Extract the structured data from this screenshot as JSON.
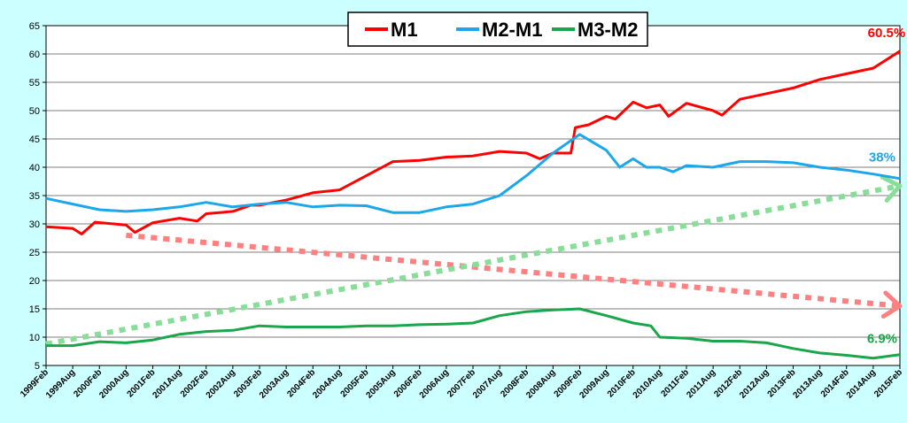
{
  "chart_data": {
    "type": "line",
    "ylim": [
      5,
      65
    ],
    "yticks": [
      5,
      10,
      15,
      20,
      25,
      30,
      35,
      40,
      45,
      50,
      55,
      60,
      65
    ],
    "x_start": "1999-02",
    "x_end": "2015-02",
    "xticks": [
      "1999Feb",
      "1999Aug",
      "2000Feb",
      "2000Aug",
      "2001Feb",
      "2001Aug",
      "2002Feb",
      "2002Aug",
      "2003Feb",
      "2003Aug",
      "2004Feb",
      "2004Aug",
      "2005Feb",
      "2005Aug",
      "2006Feb",
      "2006Aug",
      "2007Feb",
      "2007Aug",
      "2008Feb",
      "2008Aug",
      "2009Feb",
      "2009Aug",
      "2010Feb",
      "2010Aug",
      "2011Feb",
      "2011Aug",
      "2012Feb",
      "2012Aug",
      "2013Feb",
      "2013Aug",
      "2014Feb",
      "2014Aug",
      "2015Feb"
    ],
    "grid": true,
    "legend": {
      "placement": "top-center",
      "entries": [
        "M1",
        "M2-M1",
        "M3-M2"
      ]
    },
    "series": [
      {
        "name": "M1",
        "color": "#ff0000",
        "points": [
          [
            "1999-02",
            29.5
          ],
          [
            "1999-08",
            29.2
          ],
          [
            "1999-10",
            28.2
          ],
          [
            "2000-01",
            30.3
          ],
          [
            "2000-08",
            29.8
          ],
          [
            "2000-10",
            28.5
          ],
          [
            "2001-02",
            30.2
          ],
          [
            "2001-08",
            31
          ],
          [
            "2001-12",
            30.5
          ],
          [
            "2002-02",
            31.8
          ],
          [
            "2002-08",
            32.2
          ],
          [
            "2002-12",
            33.3
          ],
          [
            "2003-02",
            33.3
          ],
          [
            "2003-08",
            34.2
          ],
          [
            "2004-02",
            35.5
          ],
          [
            "2004-08",
            36
          ],
          [
            "2005-02",
            38.5
          ],
          [
            "2005-08",
            41
          ],
          [
            "2006-02",
            41.2
          ],
          [
            "2006-08",
            41.8
          ],
          [
            "2007-02",
            42
          ],
          [
            "2007-08",
            42.8
          ],
          [
            "2008-02",
            42.5
          ],
          [
            "2008-05",
            41.5
          ],
          [
            "2008-08",
            42.5
          ],
          [
            "2008-12",
            42.5
          ],
          [
            "2009-01",
            47
          ],
          [
            "2009-04",
            47.5
          ],
          [
            "2009-08",
            49
          ],
          [
            "2009-10",
            48.5
          ],
          [
            "2010-02",
            51.5
          ],
          [
            "2010-05",
            50.5
          ],
          [
            "2010-08",
            51
          ],
          [
            "2010-10",
            49
          ],
          [
            "2011-02",
            51.3
          ],
          [
            "2011-08",
            50
          ],
          [
            "2011-10",
            49.2
          ],
          [
            "2012-02",
            52
          ],
          [
            "2012-08",
            53
          ],
          [
            "2013-02",
            54
          ],
          [
            "2013-08",
            55.5
          ],
          [
            "2014-02",
            56.5
          ],
          [
            "2014-08",
            57.5
          ],
          [
            "2014-12",
            59.5
          ],
          [
            "2015-02",
            60.5
          ]
        ]
      },
      {
        "name": "M2-M1",
        "color": "#1ca8e8",
        "points": [
          [
            "1999-02",
            34.5
          ],
          [
            "1999-08",
            33.5
          ],
          [
            "2000-02",
            32.5
          ],
          [
            "2000-08",
            32.2
          ],
          [
            "2001-02",
            32.5
          ],
          [
            "2001-08",
            33
          ],
          [
            "2002-02",
            33.8
          ],
          [
            "2002-08",
            33
          ],
          [
            "2003-02",
            33.5
          ],
          [
            "2003-08",
            33.8
          ],
          [
            "2004-02",
            33
          ],
          [
            "2004-08",
            33.3
          ],
          [
            "2005-02",
            33.2
          ],
          [
            "2005-08",
            32
          ],
          [
            "2006-02",
            32
          ],
          [
            "2006-08",
            33
          ],
          [
            "2007-02",
            33.5
          ],
          [
            "2007-08",
            35
          ],
          [
            "2008-02",
            38.5
          ],
          [
            "2008-08",
            42.5
          ],
          [
            "2009-02",
            45.8
          ],
          [
            "2009-08",
            43
          ],
          [
            "2009-11",
            40
          ],
          [
            "2010-02",
            41.5
          ],
          [
            "2010-05",
            40
          ],
          [
            "2010-08",
            40
          ],
          [
            "2010-11",
            39.2
          ],
          [
            "2011-02",
            40.3
          ],
          [
            "2011-08",
            40
          ],
          [
            "2012-02",
            41
          ],
          [
            "2012-08",
            41
          ],
          [
            "2013-02",
            40.8
          ],
          [
            "2013-08",
            40
          ],
          [
            "2014-02",
            39.5
          ],
          [
            "2014-08",
            38.8
          ],
          [
            "2015-02",
            38
          ]
        ]
      },
      {
        "name": "M3-M2",
        "color": "#1aa64a",
        "points": [
          [
            "1999-02",
            8.5
          ],
          [
            "1999-08",
            8.5
          ],
          [
            "2000-02",
            9.2
          ],
          [
            "2000-08",
            9
          ],
          [
            "2001-02",
            9.5
          ],
          [
            "2001-08",
            10.5
          ],
          [
            "2002-02",
            11
          ],
          [
            "2002-08",
            11.2
          ],
          [
            "2003-02",
            12
          ],
          [
            "2003-08",
            11.8
          ],
          [
            "2004-02",
            11.8
          ],
          [
            "2004-08",
            11.8
          ],
          [
            "2005-02",
            12
          ],
          [
            "2005-08",
            12
          ],
          [
            "2006-02",
            12.2
          ],
          [
            "2006-08",
            12.3
          ],
          [
            "2007-02",
            12.5
          ],
          [
            "2007-08",
            13.8
          ],
          [
            "2008-02",
            14.5
          ],
          [
            "2008-08",
            14.8
          ],
          [
            "2009-02",
            15
          ],
          [
            "2009-08",
            13.8
          ],
          [
            "2010-02",
            12.5
          ],
          [
            "2010-06",
            12
          ],
          [
            "2010-08",
            10
          ],
          [
            "2011-02",
            9.8
          ],
          [
            "2011-08",
            9.3
          ],
          [
            "2012-02",
            9.3
          ],
          [
            "2012-08",
            9
          ],
          [
            "2013-02",
            8
          ],
          [
            "2013-08",
            7.2
          ],
          [
            "2014-02",
            6.8
          ],
          [
            "2014-08",
            6.3
          ],
          [
            "2015-02",
            6.9
          ]
        ]
      }
    ],
    "annotations": [
      {
        "text": "60.5%",
        "color": "#ff0000",
        "at": [
          "2014-11",
          63
        ]
      },
      {
        "text": "38%",
        "color": "#1ca8e8",
        "at": [
          "2014-10",
          41
        ]
      },
      {
        "text": "6.9%",
        "color": "#1aa64a",
        "at": [
          "2014-10",
          9
        ]
      }
    ],
    "trend_arrows": [
      {
        "name": "declining-trend-arrow",
        "color": "#ff8080",
        "from": [
          "2000-08",
          28
        ],
        "to": [
          "2015-02",
          15.5
        ]
      },
      {
        "name": "rising-trend-arrow",
        "color": "#88dd99",
        "from": [
          "1999-02",
          8.8
        ],
        "to": [
          "2015-02",
          36.7
        ]
      }
    ]
  }
}
